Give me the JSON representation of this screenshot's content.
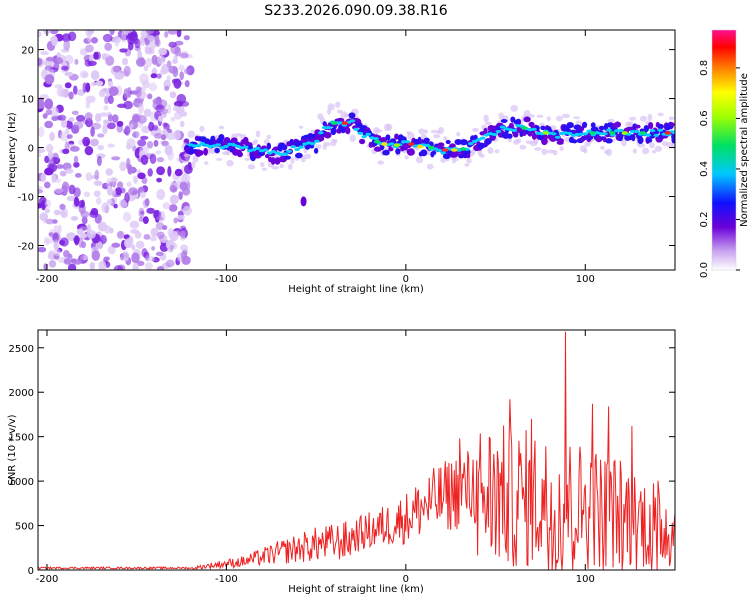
{
  "figure_title": "S233.2026.090.09.38.R16",
  "colors": {
    "snr_line": "#ee2222",
    "spectrogram_noise": "#8a2be2",
    "axis": "#000000"
  },
  "chart_data": [
    {
      "type": "heatmap",
      "name": "spectrogram",
      "title": "S233.2026.090.09.38.R16",
      "xlabel": "Height of straight line (km)",
      "ylabel": "Frequency (Hz)",
      "xlim": [
        -205,
        150
      ],
      "ylim": [
        -25,
        24
      ],
      "xticks": [
        -200,
        -100,
        0,
        100
      ],
      "yticks": [
        -20,
        -10,
        0,
        10,
        20
      ],
      "noise_region_x": [
        -205,
        -120
      ],
      "ridge": {
        "x": [
          -120,
          -110,
          -100,
          -90,
          -80,
          -70,
          -60,
          -50,
          -45,
          -40,
          -35,
          -30,
          -25,
          -20,
          -15,
          -10,
          -5,
          0,
          5,
          10,
          15,
          20,
          25,
          30,
          35,
          40,
          45,
          50,
          55,
          60,
          65,
          70,
          75,
          80,
          85,
          90,
          95,
          100,
          105,
          110,
          115,
          120,
          125,
          130,
          135,
          140,
          145,
          150
        ],
        "y": [
          0,
          0.5,
          0.5,
          0,
          -1,
          -1,
          0,
          1,
          4,
          5,
          5,
          5,
          3,
          2,
          1,
          0.5,
          0.5,
          1,
          0.5,
          0,
          0,
          -0.5,
          -0.5,
          -0.5,
          0,
          1,
          2,
          3,
          4,
          4,
          4,
          4,
          3,
          3,
          2,
          3,
          3,
          3,
          3,
          3,
          3,
          3,
          3,
          3,
          3,
          3,
          3,
          3
        ]
      },
      "isolated_blob": {
        "x": -57,
        "y": -11
      },
      "colorbar": {
        "label": "Normalized spectral amplitude",
        "range": [
          0,
          0.95
        ],
        "ticks": [
          "0.0",
          "0.2",
          "0.4",
          "0.6",
          "0.8"
        ],
        "tick_values": [
          0,
          0.2,
          0.4,
          0.6,
          0.8
        ]
      }
    },
    {
      "type": "line",
      "name": "snr",
      "xlabel": "Height of straight line (km)",
      "ylabel": "SNR (10 * v/v)",
      "xlim": [
        -205,
        150
      ],
      "ylim": [
        0,
        2700
      ],
      "xticks": [
        -200,
        -100,
        0,
        100
      ],
      "yticks": [
        0,
        500,
        1000,
        1500,
        2000,
        2500
      ],
      "envelope": {
        "x": [
          -205,
          -120,
          -110,
          -90,
          -70,
          -50,
          -30,
          -10,
          0,
          10,
          20,
          30,
          40,
          50,
          60,
          70,
          80,
          90,
          100,
          110,
          120,
          130,
          140,
          150
        ],
        "y": [
          20,
          20,
          60,
          120,
          250,
          360,
          420,
          560,
          650,
          800,
          900,
          1000,
          1050,
          1050,
          1000,
          1000,
          950,
          950,
          900,
          850,
          800,
          700,
          650,
          550
        ]
      },
      "spikes": [
        {
          "x": 58,
          "y": 1920
        },
        {
          "x": 89,
          "y": 2680
        },
        {
          "x": 104,
          "y": 1870
        },
        {
          "x": 113,
          "y": 1840
        },
        {
          "x": 126,
          "y": 1620
        },
        {
          "x": 30,
          "y": 1480
        },
        {
          "x": 70,
          "y": 1700
        }
      ]
    }
  ],
  "tick_labels": {
    "x": [
      "-200",
      "-100",
      "0",
      "100"
    ],
    "y_top": [
      "-20",
      "-10",
      "0",
      "10",
      "20"
    ],
    "y_bottom": [
      "0",
      "500",
      "1000",
      "1500",
      "2000",
      "2500"
    ]
  }
}
